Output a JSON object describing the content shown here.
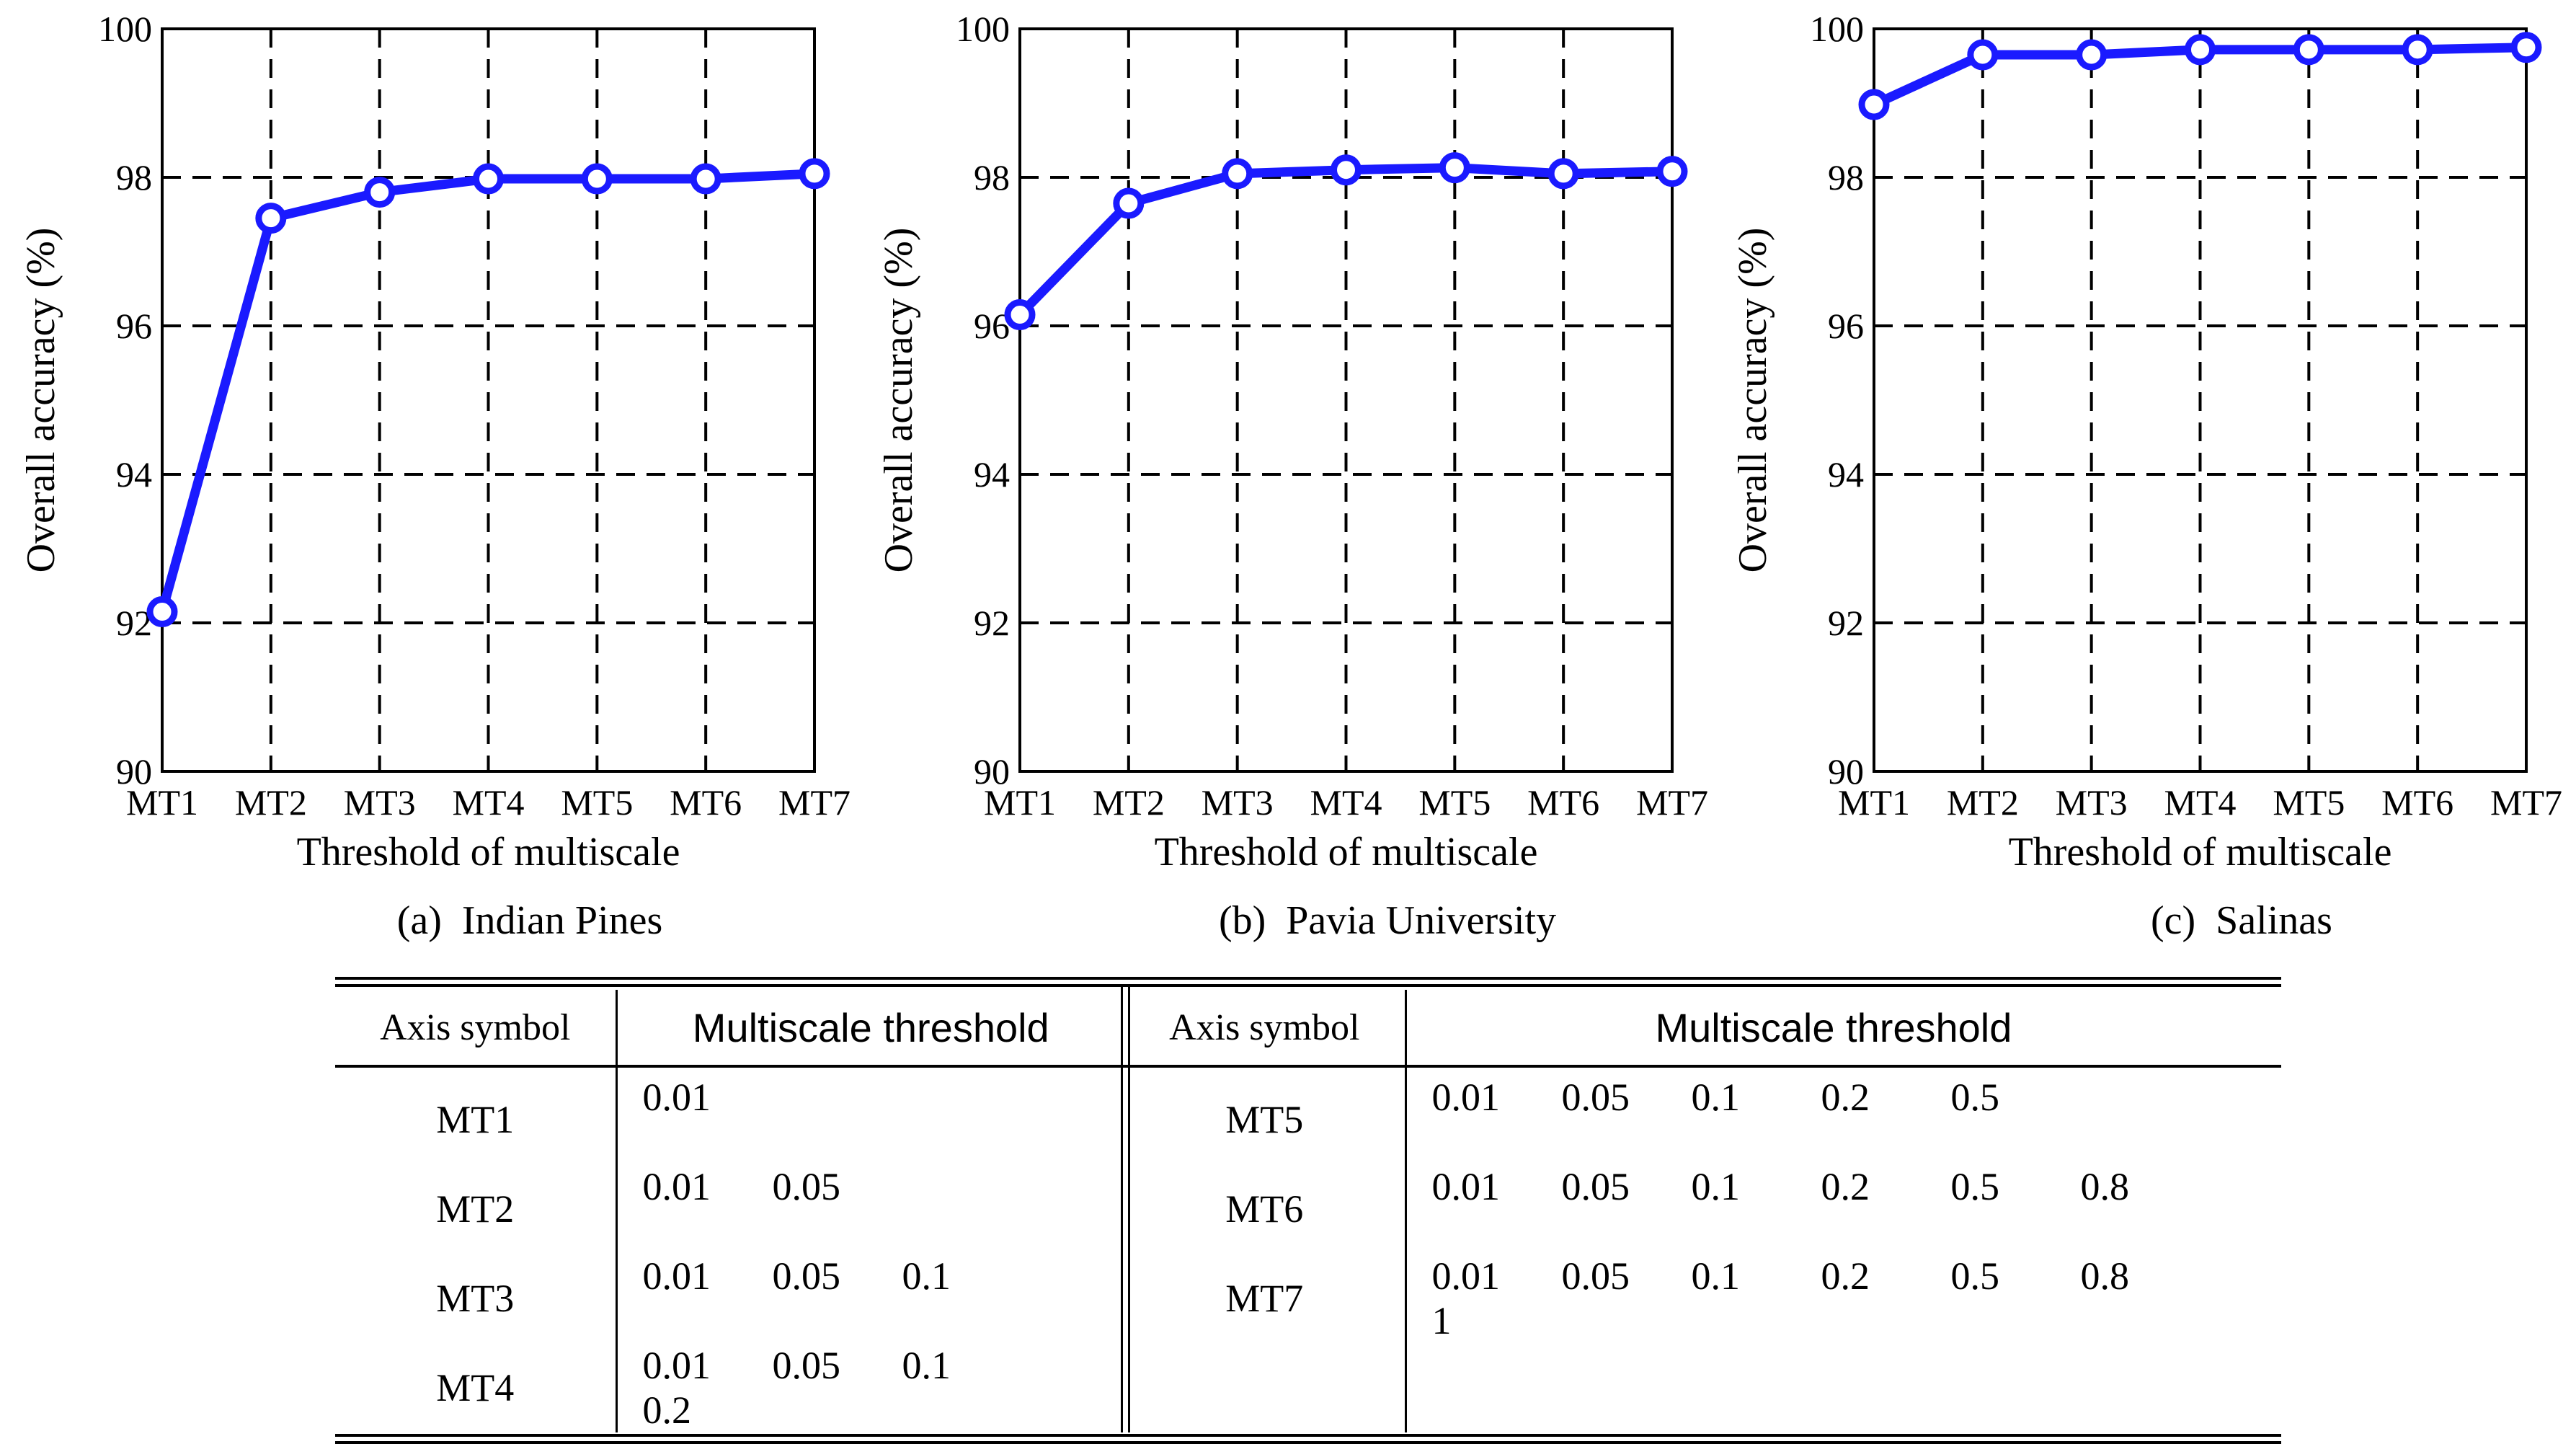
{
  "chart_data": [
    {
      "type": "line",
      "caption": "(a)  Indian Pines",
      "xlabel": "Threshold of multiscale",
      "ylabel": "Overall accuracy (%)",
      "categories": [
        "MT1",
        "MT2",
        "MT3",
        "MT4",
        "MT5",
        "MT6",
        "MT7"
      ],
      "values": [
        92.15,
        97.45,
        97.8,
        97.98,
        97.98,
        97.98,
        98.05
      ],
      "ylim": [
        90,
        100
      ],
      "yticks": [
        "90",
        "92",
        "94",
        "96",
        "98",
        "100"
      ],
      "grid": true,
      "color": "#1a1aff"
    },
    {
      "type": "line",
      "caption": "(b)  Pavia University",
      "xlabel": "Threshold of multiscale",
      "ylabel": "Overall accuracy (%)",
      "categories": [
        "MT1",
        "MT2",
        "MT3",
        "MT4",
        "MT5",
        "MT6",
        "MT7"
      ],
      "values": [
        96.15,
        97.65,
        98.05,
        98.1,
        98.13,
        98.05,
        98.08
      ],
      "ylim": [
        90,
        100
      ],
      "yticks": [
        "90",
        "92",
        "94",
        "96",
        "98",
        "100"
      ],
      "grid": true,
      "color": "#1a1aff"
    },
    {
      "type": "line",
      "caption": "(c)  Salinas",
      "xlabel": "Threshold of multiscale",
      "ylabel": "Overall accuracy (%)",
      "categories": [
        "MT1",
        "MT2",
        "MT3",
        "MT4",
        "MT5",
        "MT6",
        "MT7"
      ],
      "values": [
        98.98,
        99.65,
        99.65,
        99.72,
        99.72,
        99.72,
        99.75
      ],
      "ylim": [
        90,
        100
      ],
      "yticks": [
        "90",
        "92",
        "94",
        "96",
        "98",
        "100"
      ],
      "grid": true,
      "color": "#1a1aff"
    }
  ],
  "table": {
    "header": {
      "axis_symbol": "Axis symbol",
      "multiscale_threshold": "Multiscale threshold"
    },
    "rows": [
      {
        "left_symbol": "MT1",
        "left_values": [
          "0.01",
          "",
          "",
          ""
        ],
        "right_symbol": "MT5",
        "right_values": [
          "0.01",
          "0.05",
          "0.1",
          "0.2",
          "0.5",
          "",
          ""
        ]
      },
      {
        "left_symbol": "MT2",
        "left_values": [
          "0.01",
          "0.05",
          "",
          ""
        ],
        "right_symbol": "MT6",
        "right_values": [
          "0.01",
          "0.05",
          "0.1",
          "0.2",
          "0.5",
          "0.8",
          ""
        ]
      },
      {
        "left_symbol": "MT3",
        "left_values": [
          "0.01",
          "0.05",
          "0.1",
          ""
        ],
        "right_symbol": "MT7",
        "right_values": [
          "0.01",
          "0.05",
          "0.1",
          "0.2",
          "0.5",
          "0.8",
          "1"
        ]
      },
      {
        "left_symbol": "MT4",
        "left_values": [
          "0.01",
          "0.05",
          "0.1",
          "0.2"
        ],
        "right_symbol": "",
        "right_values": [
          "",
          "",
          "",
          "",
          "",
          "",
          ""
        ]
      }
    ]
  }
}
